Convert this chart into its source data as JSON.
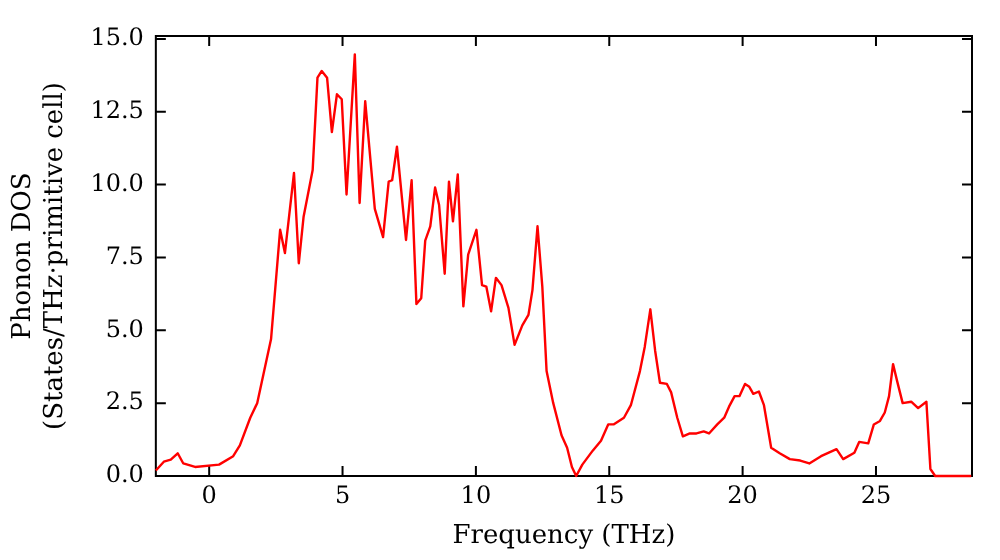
{
  "chart_data": {
    "type": "line",
    "xlabel": "Frequency (THz)",
    "ylabel": [
      "Phonon DOS",
      "(States/THz·primitive cell)"
    ],
    "xlim": [
      -2,
      28.6
    ],
    "ylim": [
      0,
      15.1
    ],
    "xticks": [
      0,
      5,
      10,
      15,
      20,
      25
    ],
    "yticks": [
      {
        "value": 0,
        "label": "0.0"
      },
      {
        "value": 2.5,
        "label": "2.5"
      },
      {
        "value": 5,
        "label": "5.0"
      },
      {
        "value": 7.5,
        "label": "7.5"
      },
      {
        "value": 10,
        "label": "10.0"
      },
      {
        "value": 12.5,
        "label": "12.5"
      },
      {
        "value": 15,
        "label": "15.0"
      }
    ],
    "grid": false,
    "legend": false,
    "marker": "none",
    "line_style": "solid",
    "series": [
      {
        "color": "#ff0000",
        "x": [
          -2.0,
          -1.7,
          -1.44,
          -1.18,
          -0.97,
          -0.53,
          0.37,
          0.9,
          1.15,
          1.54,
          1.8,
          2.32,
          2.66,
          2.84,
          3.18,
          3.36,
          3.54,
          3.88,
          4.06,
          4.22,
          4.42,
          4.6,
          4.79,
          4.97,
          5.15,
          5.46,
          5.64,
          5.85,
          6.21,
          6.52,
          6.73,
          6.86,
          7.04,
          7.38,
          7.59,
          7.77,
          7.95,
          8.1,
          8.29,
          8.47,
          8.62,
          8.83,
          8.99,
          9.14,
          9.32,
          9.53,
          9.71,
          10.02,
          10.23,
          10.39,
          10.57,
          10.75,
          10.96,
          11.22,
          11.45,
          11.74,
          11.97,
          12.12,
          12.31,
          12.49,
          12.65,
          12.9,
          13.21,
          13.42,
          13.6,
          13.76,
          13.99,
          14.38,
          14.69,
          14.96,
          15.16,
          15.55,
          15.81,
          16.15,
          16.33,
          16.54,
          16.72,
          16.9,
          17.16,
          17.32,
          17.55,
          17.76,
          18.02,
          18.27,
          18.54,
          18.74,
          19.05,
          19.31,
          19.49,
          19.7,
          19.88,
          20.09,
          20.25,
          20.4,
          20.61,
          20.8,
          21.07,
          21.39,
          21.77,
          22.16,
          22.5,
          22.94,
          23.52,
          23.77,
          24.19,
          24.37,
          24.71,
          24.92,
          25.15,
          25.33,
          25.49,
          25.64,
          25.8,
          26.0,
          26.32,
          26.58,
          26.89,
          27.04,
          27.22,
          28.57
        ],
        "values": [
          0.19,
          0.49,
          0.56,
          0.78,
          0.43,
          0.31,
          0.39,
          0.68,
          1.05,
          2.0,
          2.5,
          4.7,
          8.45,
          7.65,
          10.4,
          7.3,
          8.9,
          10.5,
          13.67,
          13.9,
          13.67,
          11.8,
          13.1,
          12.93,
          9.66,
          14.47,
          9.37,
          12.86,
          9.17,
          8.2,
          10.1,
          10.15,
          11.3,
          8.1,
          10.15,
          5.9,
          6.1,
          8.08,
          8.57,
          9.9,
          9.3,
          6.94,
          10.1,
          8.74,
          10.35,
          5.82,
          7.6,
          8.45,
          6.55,
          6.5,
          5.65,
          6.8,
          6.55,
          5.77,
          4.5,
          5.17,
          5.53,
          6.38,
          8.57,
          6.5,
          3.6,
          2.5,
          1.4,
          0.97,
          0.31,
          0.0,
          0.39,
          0.87,
          1.21,
          1.77,
          1.77,
          2.0,
          2.43,
          3.6,
          4.43,
          5.72,
          4.3,
          3.2,
          3.16,
          2.87,
          2.0,
          1.36,
          1.46,
          1.46,
          1.53,
          1.46,
          1.77,
          2.0,
          2.38,
          2.74,
          2.74,
          3.16,
          3.06,
          2.82,
          2.9,
          2.43,
          0.97,
          0.78,
          0.58,
          0.53,
          0.43,
          0.68,
          0.92,
          0.58,
          0.8,
          1.17,
          1.12,
          1.77,
          1.89,
          2.18,
          2.74,
          3.84,
          3.23,
          2.5,
          2.55,
          2.33,
          2.55,
          0.24,
          0.0,
          0.0
        ]
      }
    ]
  }
}
